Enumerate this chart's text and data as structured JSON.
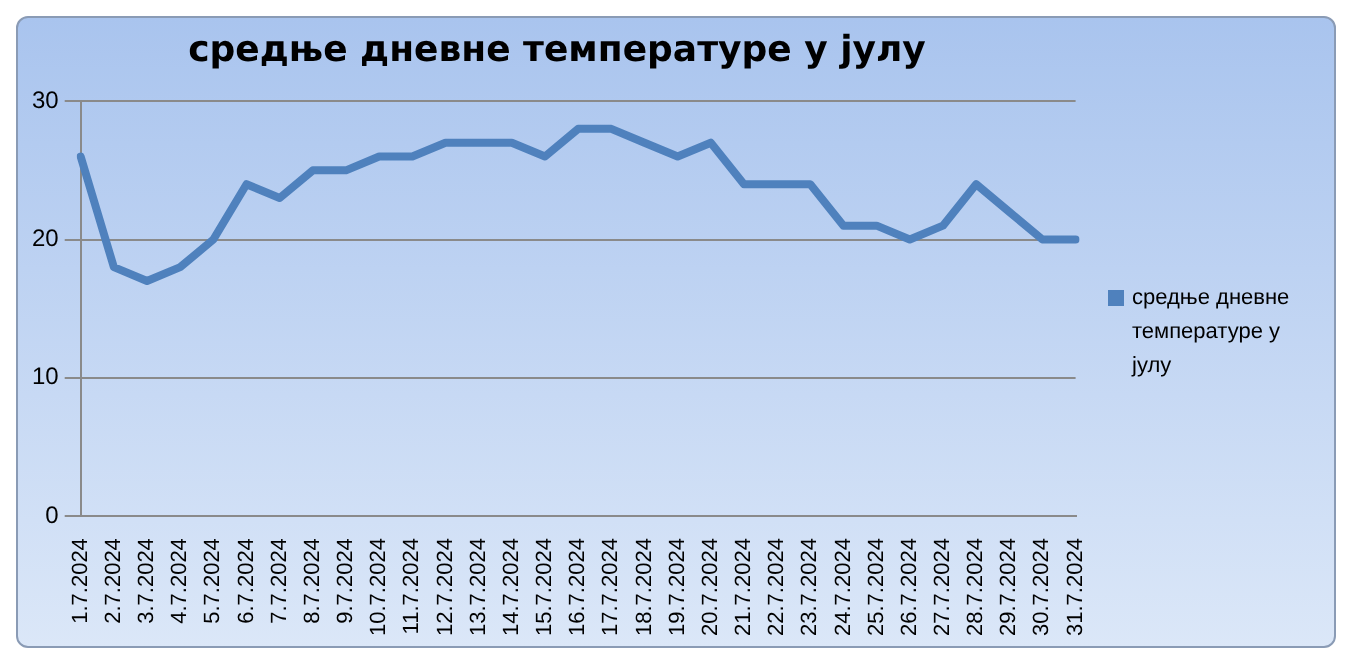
{
  "chart_data": {
    "type": "line",
    "title": "средње дневне температуре у јулу",
    "categories": [
      "1.7.2024",
      "2.7.2024",
      "3.7.2024",
      "4.7.2024",
      "5.7.2024",
      "6.7.2024",
      "7.7.2024",
      "8.7.2024",
      "9.7.2024",
      "10.7.2024",
      "11.7.2024",
      "12.7.2024",
      "13.7.2024",
      "14.7.2024",
      "15.7.2024",
      "16.7.2024",
      "17.7.2024",
      "18.7.2024",
      "19.7.2024",
      "20.7.2024",
      "21.7.2024",
      "22.7.2024",
      "23.7.2024",
      "24.7.2024",
      "25.7.2024",
      "26.7.2024",
      "27.7.2024",
      "28.7.2024",
      "29.7.2024",
      "30.7.2024",
      "31.7.2024"
    ],
    "series": [
      {
        "name": "средње дневне температуре у јулу",
        "color": "#4f81bd",
        "values": [
          26,
          18,
          17,
          18,
          20,
          24,
          23,
          25,
          25,
          26,
          26,
          27,
          27,
          27,
          26,
          28,
          28,
          27,
          26,
          27,
          24,
          24,
          24,
          21,
          21,
          20,
          21,
          24,
          22,
          20,
          20
        ]
      }
    ],
    "ylim": [
      0,
      30
    ],
    "yticks": [
      0,
      10,
      20,
      30
    ],
    "grid": "y",
    "legend": "right",
    "marker": "none",
    "line_style": "solid"
  }
}
